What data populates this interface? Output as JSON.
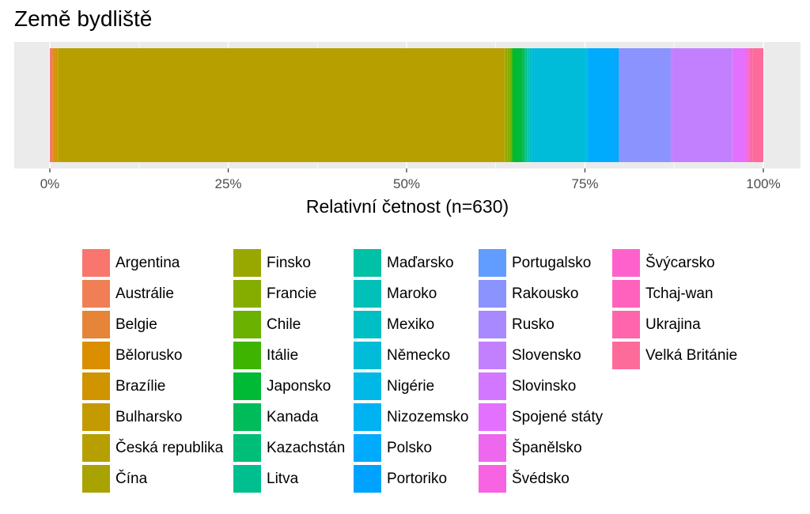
{
  "chart_data": {
    "type": "bar",
    "orientation": "horizontal",
    "stacked": "percent",
    "title": "Země bydliště",
    "xlabel": "Relativní četnost (n=630)",
    "ylabel": "",
    "xlim": [
      0,
      1
    ],
    "xticks": [
      "0%",
      "25%",
      "50%",
      "75%",
      "100%"
    ],
    "grid": true,
    "legend_position": "bottom",
    "series": [
      {
        "name": "Argentina",
        "color": "#F8766D",
        "value": 0.0016
      },
      {
        "name": "Austrálie",
        "color": "#F07F55",
        "value": 0.0016
      },
      {
        "name": "Belgie",
        "color": "#E68537",
        "value": 0.0016
      },
      {
        "name": "Bělorusko",
        "color": "#DB8E00",
        "value": 0.0016
      },
      {
        "name": "Brazílie",
        "color": "#D09400",
        "value": 0.0032
      },
      {
        "name": "Bulharsko",
        "color": "#C49A00",
        "value": 0.0016
      },
      {
        "name": "Česká republika",
        "color": "#B79F00",
        "value": 0.5873
      },
      {
        "name": "Čína",
        "color": "#A8A300",
        "value": 0.0016
      },
      {
        "name": "Finsko",
        "color": "#99A800",
        "value": 0.0032
      },
      {
        "name": "Francie",
        "color": "#85AD00",
        "value": 0.0032
      },
      {
        "name": "Chile",
        "color": "#6BB100",
        "value": 0.0016
      },
      {
        "name": "Itálie",
        "color": "#3FB400",
        "value": 0.0016
      },
      {
        "name": "Japonsko",
        "color": "#00B935",
        "value": 0.0127
      },
      {
        "name": "Kanada",
        "color": "#00BB5A",
        "value": 0.0032
      },
      {
        "name": "Kazachstán",
        "color": "#00BD77",
        "value": 0.0016
      },
      {
        "name": "Litva",
        "color": "#00BF8F",
        "value": 0.0016
      },
      {
        "name": "Maďarsko",
        "color": "#00C0A5",
        "value": 0.0016
      },
      {
        "name": "Maroko",
        "color": "#00C0B8",
        "value": 0.0016
      },
      {
        "name": "Mexiko",
        "color": "#00BFC4",
        "value": 0.0032
      },
      {
        "name": "Německo",
        "color": "#00BCD8",
        "value": 0.0714
      },
      {
        "name": "Nigérie",
        "color": "#00B8E7",
        "value": 0.0016
      },
      {
        "name": "Nizozemsko",
        "color": "#00B2F2",
        "value": 0.0016
      },
      {
        "name": "Polsko",
        "color": "#00ABFD",
        "value": 0.0381
      },
      {
        "name": "Portoriko",
        "color": "#00A2FF",
        "value": 0.0016
      },
      {
        "name": "Portugalsko",
        "color": "#619CFF",
        "value": 0.0016
      },
      {
        "name": "Rakousko",
        "color": "#8B93FF",
        "value": 0.0667
      },
      {
        "name": "Rusko",
        "color": "#A989FF",
        "value": 0.0016
      },
      {
        "name": "Slovensko",
        "color": "#C280FF",
        "value": 0.0794
      },
      {
        "name": "Slovinsko",
        "color": "#D277FF",
        "value": 0.0016
      },
      {
        "name": "Spojené státy",
        "color": "#E370FF",
        "value": 0.0159
      },
      {
        "name": "Španělsko",
        "color": "#ED68ED",
        "value": 0.0016
      },
      {
        "name": "Švédsko",
        "color": "#F763E0",
        "value": 0.0016
      },
      {
        "name": "Švýcarsko",
        "color": "#FF61CC",
        "value": 0.0016
      },
      {
        "name": "Tchaj-wan",
        "color": "#FF62BC",
        "value": 0.0016
      },
      {
        "name": "Ukrajina",
        "color": "#FF65AC",
        "value": 0.0032
      },
      {
        "name": "Velká Británie",
        "color": "#FC6B9A",
        "value": 0.0143
      }
    ]
  }
}
